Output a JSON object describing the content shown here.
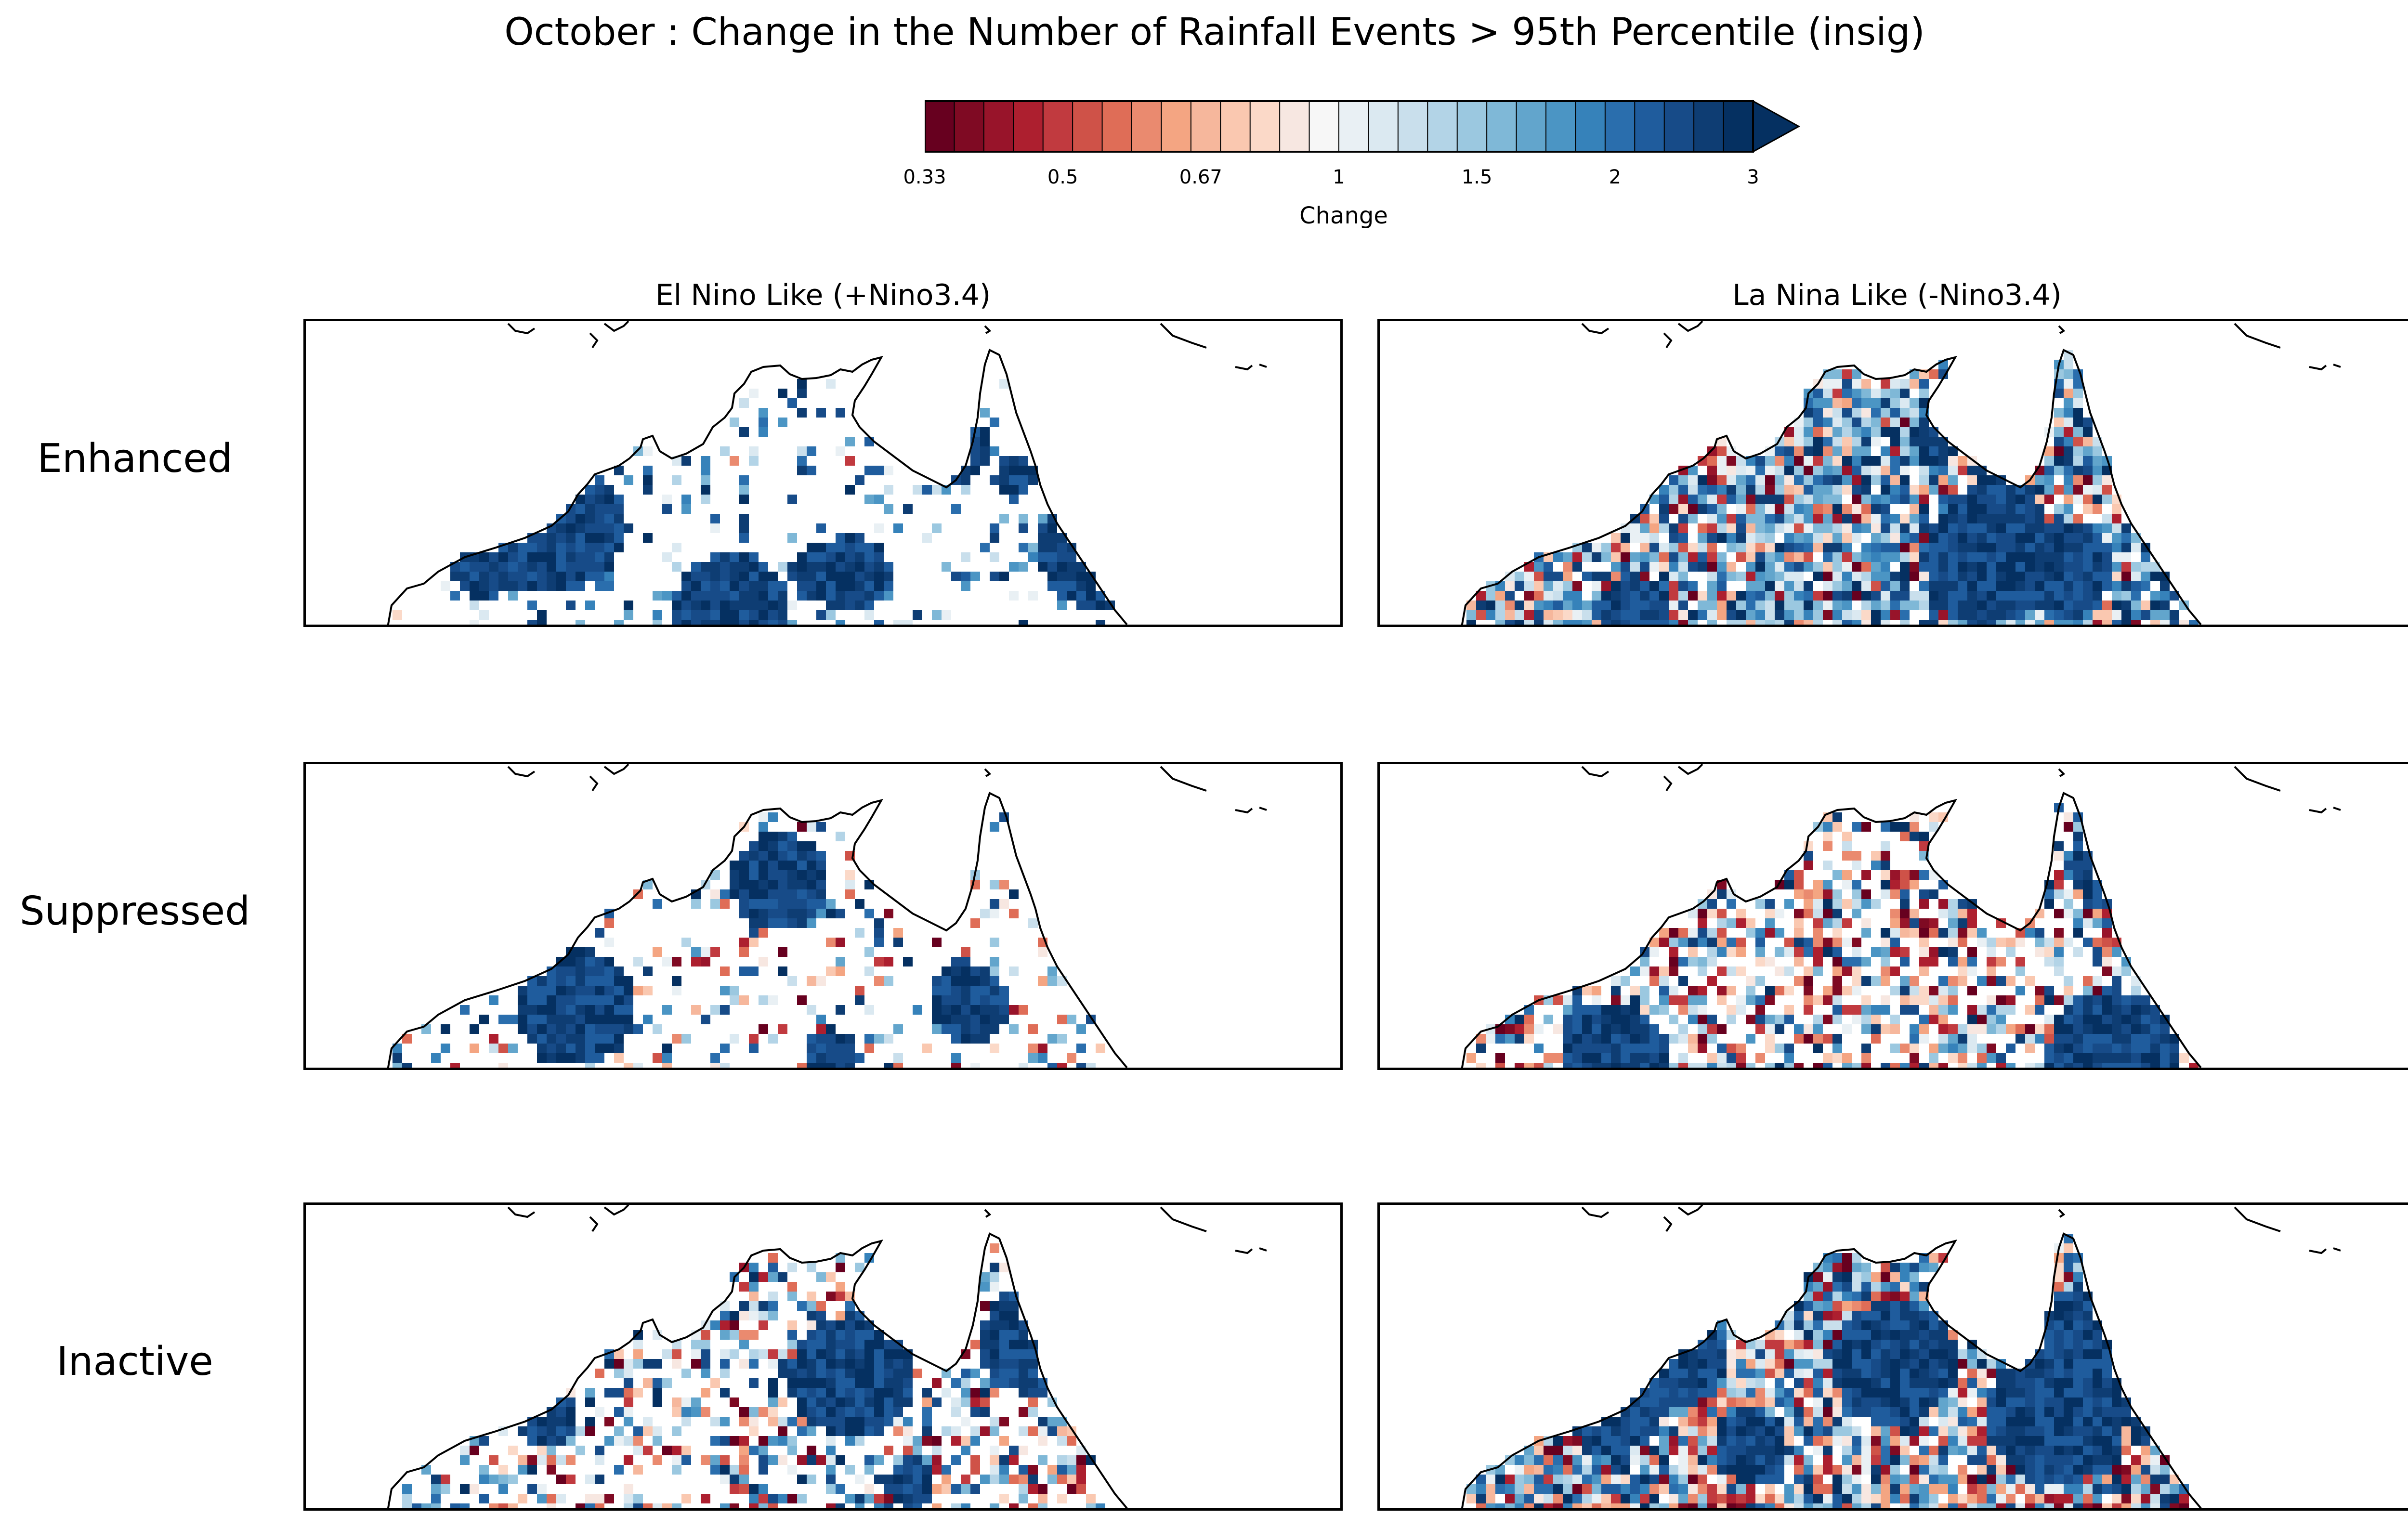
{
  "title": "October : Change in the Number of Rainfall Events > 95th Percentile (insig)",
  "colorbar": {
    "label": "Change",
    "ticks": [
      "0.33",
      "0.5",
      "0.67",
      "1",
      "1.5",
      "2",
      "3"
    ],
    "colors": [
      "#67001f",
      "#7f0a23",
      "#98142a",
      "#ad1f2f",
      "#c13a3f",
      "#cf5248",
      "#df6d57",
      "#ea8a6f",
      "#f4a582",
      "#f6b79c",
      "#fac8b0",
      "#fbd9c8",
      "#f7e7e1",
      "#f7f7f7",
      "#e9f0f4",
      "#dbe9f1",
      "#c9dfec",
      "#b3d4e7",
      "#9bc8e0",
      "#7fb8d7",
      "#62a5cc",
      "#4b95c4",
      "#3682ba",
      "#2a6ead",
      "#1f5c9d",
      "#174b88",
      "#0e3d73",
      "#053061"
    ],
    "extend": "max"
  },
  "columns": [
    "El Nino Like (+Nino3.4)",
    "La Nina Like (-Nino3.4)"
  ],
  "rows": [
    "Enhanced",
    "Suppressed",
    "Inactive"
  ],
  "panels": [
    {
      "row": "Enhanced",
      "column": "El Nino Like (+Nino3.4)",
      "seed": 11,
      "coverage": 0.16,
      "blue_bias": 0.95,
      "dark_blobs": 9
    },
    {
      "row": "Enhanced",
      "column": "La Nina Like (-Nino3.4)",
      "seed": 23,
      "coverage": 0.92,
      "blue_bias": 0.72,
      "dark_blobs": 7
    },
    {
      "row": "Suppressed",
      "column": "El Nino Like (+Nino3.4)",
      "seed": 37,
      "coverage": 0.22,
      "blue_bias": 0.65,
      "dark_blobs": 4
    },
    {
      "row": "Suppressed",
      "column": "La Nina Like (-Nino3.4)",
      "seed": 41,
      "coverage": 0.62,
      "blue_bias": 0.5,
      "dark_blobs": 5
    },
    {
      "row": "Inactive",
      "column": "El Nino Like (+Nino3.4)",
      "seed": 53,
      "coverage": 0.48,
      "blue_bias": 0.6,
      "dark_blobs": 5
    },
    {
      "row": "Inactive",
      "column": "La Nina Like (-Nino3.4)",
      "seed": 67,
      "coverage": 0.93,
      "blue_bias": 0.6,
      "dark_blobs": 8
    }
  ]
}
